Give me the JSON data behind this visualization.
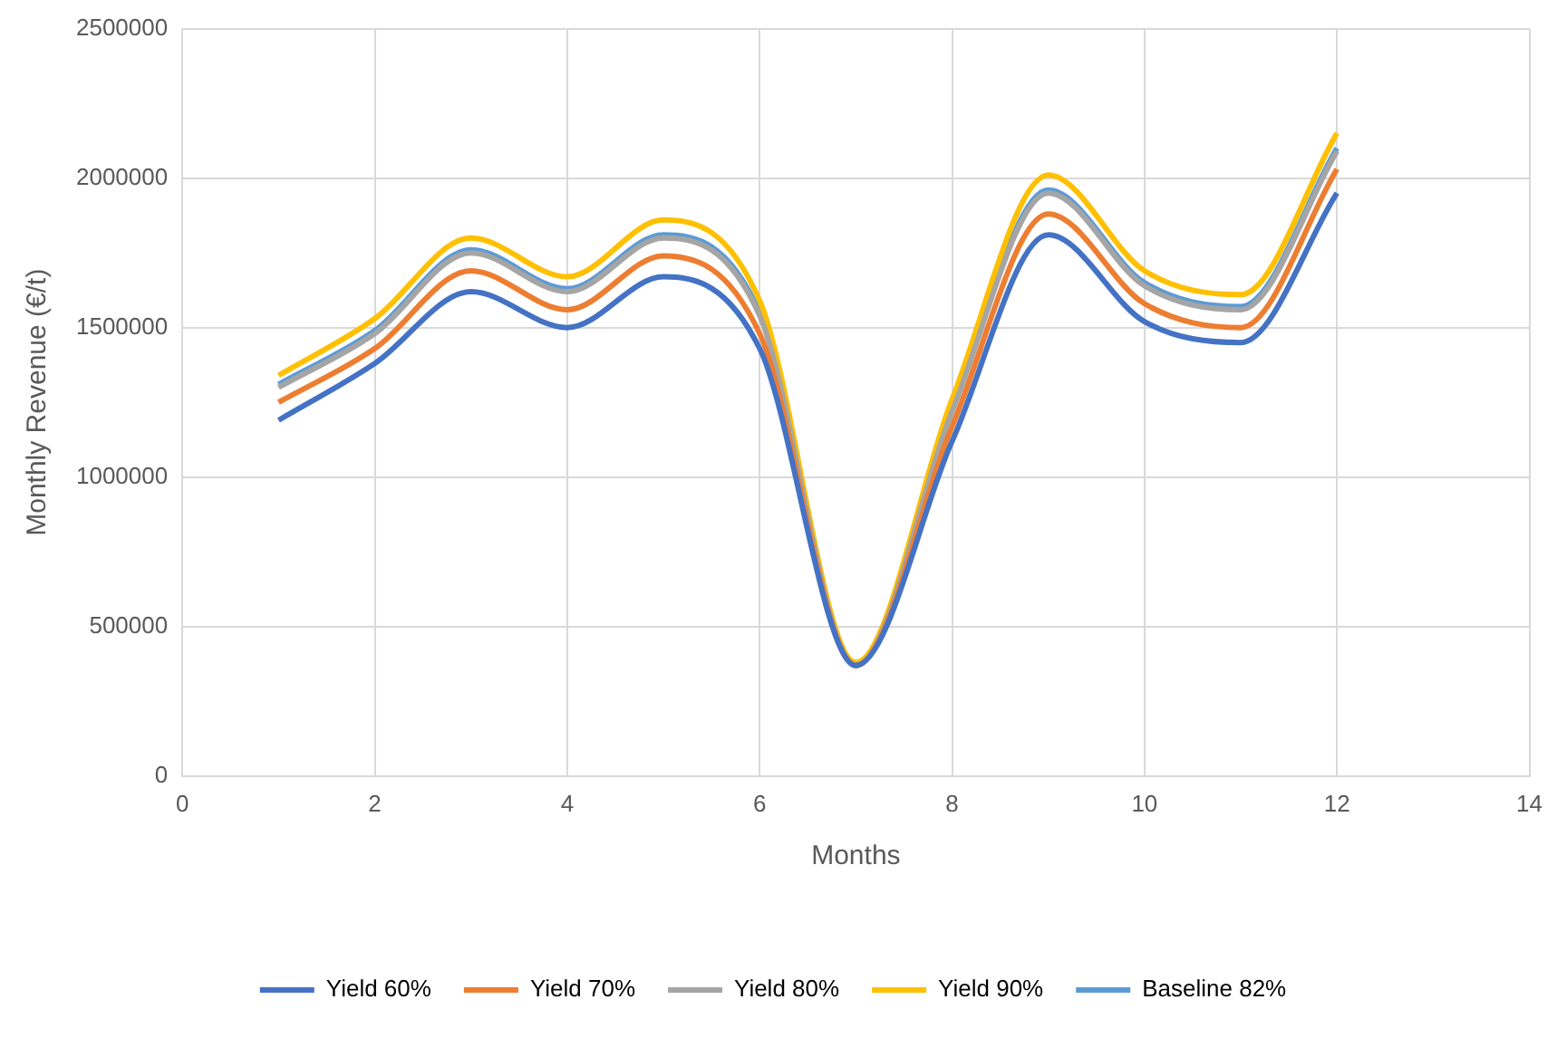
{
  "chart_data": {
    "type": "line",
    "xlabel": "Months",
    "ylabel": "Monthly Revenue (€/t)",
    "x": [
      1,
      2,
      3,
      4,
      5,
      6,
      7,
      8,
      9,
      10,
      11,
      12
    ],
    "series": [
      {
        "name": "Yield 60%",
        "color": "#4472c4",
        "values": [
          1190000,
          1380000,
          1620000,
          1500000,
          1670000,
          1430000,
          370000,
          1120000,
          1810000,
          1520000,
          1450000,
          1950000
        ]
      },
      {
        "name": "Yield 70%",
        "color": "#ed7d31",
        "values": [
          1250000,
          1430000,
          1690000,
          1560000,
          1740000,
          1480000,
          370000,
          1170000,
          1880000,
          1580000,
          1500000,
          2030000
        ]
      },
      {
        "name": "Yield 80%",
        "color": "#a5a5a5",
        "values": [
          1300000,
          1480000,
          1750000,
          1620000,
          1800000,
          1540000,
          370000,
          1220000,
          1950000,
          1640000,
          1560000,
          2090000
        ]
      },
      {
        "name": "Yield 90%",
        "color": "#ffc000",
        "values": [
          1340000,
          1530000,
          1800000,
          1670000,
          1860000,
          1590000,
          380000,
          1260000,
          2010000,
          1690000,
          1610000,
          2150000
        ]
      },
      {
        "name": "Baseline 82%",
        "color": "#5b9bd5",
        "values": [
          1310000,
          1490000,
          1760000,
          1630000,
          1810000,
          1550000,
          370000,
          1230000,
          1960000,
          1650000,
          1570000,
          2100000
        ]
      }
    ],
    "xlim": [
      0,
      14
    ],
    "xticks": [
      0,
      2,
      4,
      6,
      8,
      10,
      12,
      14
    ],
    "ylim": [
      0,
      2500000
    ],
    "yticks": [
      0,
      500000,
      1000000,
      1500000,
      2000000,
      2500000
    ],
    "grid": true,
    "legend": "bottom",
    "marker": "none",
    "line_style": "solid"
  }
}
